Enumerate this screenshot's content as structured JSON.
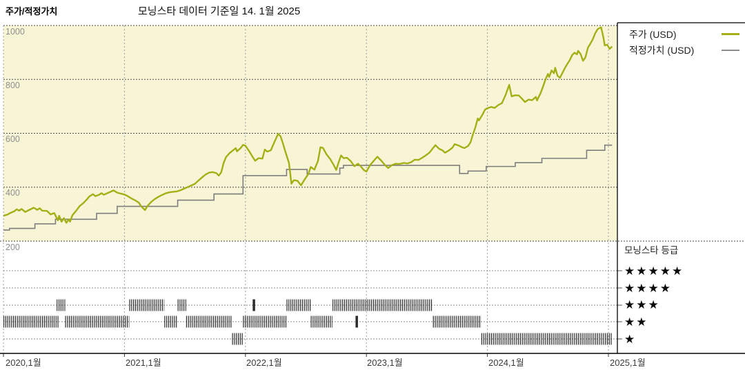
{
  "header": {
    "title": "주가/적정가치",
    "subtitle": "모닝스타 데이터 기준일 14. 1월 2025"
  },
  "legend": {
    "items": [
      {
        "label": "주가 (USD)",
        "color": "#a3af14"
      },
      {
        "label": "적정가치 (USD)",
        "color": "#8c8c8c"
      }
    ]
  },
  "rating_legend": {
    "title": "모닝스타 등급",
    "rows": [
      "★★★★★",
      "★★★★",
      "★★★",
      "★★",
      "★"
    ]
  },
  "colors": {
    "plot_bg": "#f8f5d7",
    "price_line": "#a3af14",
    "fair_value_line": "#7d7d7d",
    "h_grid": "#4a4a4a",
    "v_grid": "#9a9a9a",
    "rating_row_line": "#8a8a8a",
    "rating_ticks": "#2b2b2b",
    "border": "#000000"
  },
  "chart_data": {
    "type": "line",
    "title": "주가/적정가치",
    "subtitle": "모닝스타 데이터 기준일 14. 1월 2025",
    "grid": true,
    "legend_position": "top-right",
    "x_axis": {
      "tick_labels": [
        "2020,1월",
        "2021,1월",
        "2022,1월",
        "2023,1월",
        "2024,1월",
        "2025,1월"
      ],
      "tick_years": [
        2020,
        2021,
        2022,
        2023,
        2024,
        2025
      ],
      "range": [
        2020.0,
        2025.08
      ]
    },
    "y_axis": {
      "tick_labels": [
        "1000",
        "800",
        "600",
        "400",
        "200"
      ],
      "tick_values": [
        1000,
        800,
        600,
        400,
        200
      ],
      "range": [
        200,
        1000
      ],
      "unit": "USD"
    },
    "series": [
      {
        "name": "주가 (USD)",
        "style": "line",
        "points": [
          [
            2020.0,
            294
          ],
          [
            2020.03,
            298
          ],
          [
            2020.06,
            305
          ],
          [
            2020.09,
            311
          ],
          [
            2020.11,
            318
          ],
          [
            2020.13,
            313
          ],
          [
            2020.15,
            319
          ],
          [
            2020.18,
            308
          ],
          [
            2020.21,
            315
          ],
          [
            2020.25,
            324
          ],
          [
            2020.28,
            316
          ],
          [
            2020.3,
            322
          ],
          [
            2020.32,
            313
          ],
          [
            2020.36,
            312
          ],
          [
            2020.39,
            299
          ],
          [
            2020.42,
            304
          ],
          [
            2020.45,
            277
          ],
          [
            2020.46,
            294
          ],
          [
            2020.48,
            272
          ],
          [
            2020.5,
            285
          ],
          [
            2020.52,
            268
          ],
          [
            2020.54,
            281
          ],
          [
            2020.55,
            272
          ],
          [
            2020.57,
            296
          ],
          [
            2020.6,
            312
          ],
          [
            2020.63,
            330
          ],
          [
            2020.66,
            341
          ],
          [
            2020.69,
            355
          ],
          [
            2020.71,
            366
          ],
          [
            2020.74,
            374
          ],
          [
            2020.76,
            367
          ],
          [
            2020.79,
            372
          ],
          [
            2020.81,
            378
          ],
          [
            2020.83,
            372
          ],
          [
            2020.86,
            378
          ],
          [
            2020.89,
            384
          ],
          [
            2020.91,
            388
          ],
          [
            2020.94,
            380
          ],
          [
            2020.97,
            376
          ],
          [
            2021.0,
            373
          ],
          [
            2021.03,
            366
          ],
          [
            2021.06,
            358
          ],
          [
            2021.09,
            351
          ],
          [
            2021.12,
            342
          ],
          [
            2021.14,
            328
          ],
          [
            2021.17,
            315
          ],
          [
            2021.19,
            330
          ],
          [
            2021.22,
            345
          ],
          [
            2021.25,
            356
          ],
          [
            2021.28,
            364
          ],
          [
            2021.31,
            371
          ],
          [
            2021.34,
            377
          ],
          [
            2021.37,
            381
          ],
          [
            2021.4,
            383
          ],
          [
            2021.43,
            384
          ],
          [
            2021.46,
            388
          ],
          [
            2021.49,
            394
          ],
          [
            2021.52,
            400
          ],
          [
            2021.55,
            406
          ],
          [
            2021.58,
            412
          ],
          [
            2021.61,
            424
          ],
          [
            2021.64,
            436
          ],
          [
            2021.67,
            447
          ],
          [
            2021.7,
            454
          ],
          [
            2021.73,
            456
          ],
          [
            2021.76,
            452
          ],
          [
            2021.78,
            443
          ],
          [
            2021.8,
            455
          ],
          [
            2021.82,
            490
          ],
          [
            2021.84,
            512
          ],
          [
            2021.87,
            527
          ],
          [
            2021.9,
            538
          ],
          [
            2021.92,
            545
          ],
          [
            2021.93,
            533
          ],
          [
            2021.96,
            545
          ],
          [
            2021.98,
            557
          ],
          [
            2022.0,
            554
          ],
          [
            2022.03,
            534
          ],
          [
            2022.06,
            512
          ],
          [
            2022.08,
            498
          ],
          [
            2022.11,
            508
          ],
          [
            2022.14,
            506
          ],
          [
            2022.16,
            540
          ],
          [
            2022.18,
            532
          ],
          [
            2022.21,
            537
          ],
          [
            2022.24,
            568
          ],
          [
            2022.27,
            598
          ],
          [
            2022.29,
            589
          ],
          [
            2022.31,
            562
          ],
          [
            2022.33,
            532
          ],
          [
            2022.36,
            490
          ],
          [
            2022.38,
            413
          ],
          [
            2022.4,
            426
          ],
          [
            2022.43,
            424
          ],
          [
            2022.46,
            407
          ],
          [
            2022.49,
            429
          ],
          [
            2022.52,
            449
          ],
          [
            2022.54,
            475
          ],
          [
            2022.57,
            465
          ],
          [
            2022.6,
            498
          ],
          [
            2022.62,
            548
          ],
          [
            2022.64,
            546
          ],
          [
            2022.67,
            522
          ],
          [
            2022.7,
            505
          ],
          [
            2022.73,
            482
          ],
          [
            2022.75,
            464
          ],
          [
            2022.77,
            492
          ],
          [
            2022.79,
            518
          ],
          [
            2022.81,
            508
          ],
          [
            2022.84,
            509
          ],
          [
            2022.87,
            497
          ],
          [
            2022.9,
            478
          ],
          [
            2022.93,
            487
          ],
          [
            2022.95,
            479
          ],
          [
            2022.98,
            463
          ],
          [
            2023.0,
            458
          ],
          [
            2023.03,
            482
          ],
          [
            2023.07,
            503
          ],
          [
            2023.09,
            513
          ],
          [
            2023.12,
            500
          ],
          [
            2023.15,
            484
          ],
          [
            2023.18,
            471
          ],
          [
            2023.21,
            482
          ],
          [
            2023.24,
            487
          ],
          [
            2023.27,
            486
          ],
          [
            2023.31,
            490
          ],
          [
            2023.34,
            488
          ],
          [
            2023.37,
            493
          ],
          [
            2023.4,
            502
          ],
          [
            2023.43,
            501
          ],
          [
            2023.46,
            509
          ],
          [
            2023.49,
            518
          ],
          [
            2023.52,
            528
          ],
          [
            2023.55,
            545
          ],
          [
            2023.57,
            556
          ],
          [
            2023.6,
            543
          ],
          [
            2023.63,
            536
          ],
          [
            2023.65,
            528
          ],
          [
            2023.68,
            536
          ],
          [
            2023.71,
            546
          ],
          [
            2023.73,
            560
          ],
          [
            2023.76,
            555
          ],
          [
            2023.79,
            548
          ],
          [
            2023.81,
            545
          ],
          [
            2023.84,
            553
          ],
          [
            2023.86,
            566
          ],
          [
            2023.88,
            596
          ],
          [
            2023.9,
            622
          ],
          [
            2023.92,
            655
          ],
          [
            2023.93,
            648
          ],
          [
            2023.96,
            670
          ],
          [
            2023.98,
            688
          ],
          [
            2024.0,
            693
          ],
          [
            2024.03,
            698
          ],
          [
            2024.06,
            694
          ],
          [
            2024.09,
            705
          ],
          [
            2024.12,
            712
          ],
          [
            2024.15,
            742
          ],
          [
            2024.18,
            780
          ],
          [
            2024.2,
            737
          ],
          [
            2024.23,
            741
          ],
          [
            2024.26,
            740
          ],
          [
            2024.29,
            726
          ],
          [
            2024.31,
            716
          ],
          [
            2024.34,
            725
          ],
          [
            2024.37,
            723
          ],
          [
            2024.4,
            735
          ],
          [
            2024.41,
            722
          ],
          [
            2024.44,
            750
          ],
          [
            2024.46,
            774
          ],
          [
            2024.48,
            800
          ],
          [
            2024.5,
            820
          ],
          [
            2024.51,
            809
          ],
          [
            2024.53,
            833
          ],
          [
            2024.55,
            823
          ],
          [
            2024.56,
            843
          ],
          [
            2024.58,
            813
          ],
          [
            2024.6,
            806
          ],
          [
            2024.62,
            824
          ],
          [
            2024.64,
            842
          ],
          [
            2024.66,
            857
          ],
          [
            2024.68,
            871
          ],
          [
            2024.7,
            890
          ],
          [
            2024.72,
            899
          ],
          [
            2024.74,
            893
          ],
          [
            2024.75,
            906
          ],
          [
            2024.77,
            894
          ],
          [
            2024.79,
            869
          ],
          [
            2024.81,
            882
          ],
          [
            2024.83,
            917
          ],
          [
            2024.85,
            932
          ],
          [
            2024.87,
            948
          ],
          [
            2024.89,
            970
          ],
          [
            2024.91,
            986
          ],
          [
            2024.93,
            991
          ],
          [
            2024.94,
            993
          ],
          [
            2024.96,
            952
          ],
          [
            2024.97,
            926
          ],
          [
            2024.99,
            929
          ],
          [
            2025.01,
            913
          ],
          [
            2025.03,
            922
          ]
        ]
      },
      {
        "name": "적정가치 (USD)",
        "style": "step",
        "points": [
          [
            2020.0,
            241
          ],
          [
            2020.05,
            247
          ],
          [
            2020.26,
            264
          ],
          [
            2020.43,
            281
          ],
          [
            2020.77,
            303
          ],
          [
            2020.94,
            329
          ],
          [
            2021.44,
            352
          ],
          [
            2021.74,
            375
          ],
          [
            2021.98,
            443
          ],
          [
            2022.34,
            466
          ],
          [
            2022.51,
            449
          ],
          [
            2022.78,
            471
          ],
          [
            2022.81,
            481
          ],
          [
            2023.77,
            451
          ],
          [
            2023.84,
            460
          ],
          [
            2023.99,
            477
          ],
          [
            2024.23,
            491
          ],
          [
            2024.45,
            507
          ],
          [
            2024.82,
            537
          ],
          [
            2024.97,
            556
          ]
        ],
        "end_x": 2025.03
      }
    ],
    "rating_timeline": {
      "levels": [
        5,
        4,
        3,
        2,
        1
      ],
      "segments": [
        {
          "stars": 2,
          "from": 2020.0,
          "to": 2020.46
        },
        {
          "stars": 3,
          "from": 2020.44,
          "to": 2020.51
        },
        {
          "stars": 2,
          "from": 2020.51,
          "to": 2021.04
        },
        {
          "stars": 3,
          "from": 2021.04,
          "to": 2021.33
        },
        {
          "stars": 2,
          "from": 2021.33,
          "to": 2021.44
        },
        {
          "stars": 3,
          "from": 2021.44,
          "to": 2021.51
        },
        {
          "stars": 2,
          "from": 2021.51,
          "to": 2021.89
        },
        {
          "stars": 1,
          "from": 2021.89,
          "to": 2021.98
        },
        {
          "stars": 2,
          "from": 2021.98,
          "to": 2022.34
        },
        {
          "stars": 3,
          "from": 2022.06,
          "to": 2022.08
        },
        {
          "stars": 3,
          "from": 2022.34,
          "to": 2022.54
        },
        {
          "stars": 2,
          "from": 2022.54,
          "to": 2022.72
        },
        {
          "stars": 3,
          "from": 2022.72,
          "to": 2023.55
        },
        {
          "stars": 2,
          "from": 2022.91,
          "to": 2022.93
        },
        {
          "stars": 2,
          "from": 2023.55,
          "to": 2023.95
        },
        {
          "stars": 1,
          "from": 2023.95,
          "to": 2025.03
        }
      ]
    }
  }
}
